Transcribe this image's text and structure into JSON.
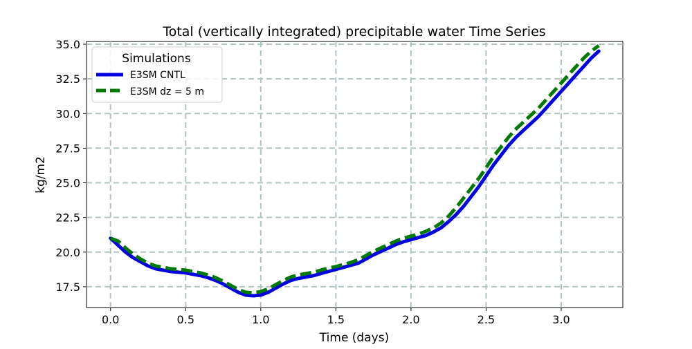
{
  "chart_data": {
    "type": "line",
    "title": "Total (vertically integrated) precipitable water Time Series",
    "xlabel": "Time (days)",
    "ylabel": "kg/m2",
    "xlim": [
      -0.16,
      3.41
    ],
    "ylim": [
      16.0,
      35.2
    ],
    "xticks": [
      0.0,
      0.5,
      1.0,
      1.5,
      2.0,
      2.5,
      3.0
    ],
    "xtick_labels": [
      "0.0",
      "0.5",
      "1.0",
      "1.5",
      "2.0",
      "2.5",
      "3.0"
    ],
    "yticks": [
      17.5,
      20.0,
      22.5,
      25.0,
      27.5,
      30.0,
      32.5,
      35.0
    ],
    "ytick_labels": [
      "17.5",
      "20.0",
      "22.5",
      "25.0",
      "27.5",
      "30.0",
      "32.5",
      "35.0"
    ],
    "grid": true,
    "legend": {
      "title": "Simulations",
      "placement": "top-left"
    },
    "series": [
      {
        "name": "E3SM CNTL",
        "color": "#0000e0",
        "style": "solid",
        "x": [
          0.0,
          0.05,
          0.1,
          0.15,
          0.2,
          0.25,
          0.3,
          0.35,
          0.4,
          0.45,
          0.5,
          0.55,
          0.6,
          0.65,
          0.7,
          0.75,
          0.8,
          0.85,
          0.9,
          0.95,
          1.0,
          1.05,
          1.1,
          1.15,
          1.2,
          1.25,
          1.3,
          1.35,
          1.4,
          1.45,
          1.5,
          1.55,
          1.6,
          1.65,
          1.7,
          1.75,
          1.8,
          1.85,
          1.9,
          1.95,
          2.0,
          2.05,
          2.1,
          2.15,
          2.2,
          2.25,
          2.3,
          2.35,
          2.4,
          2.45,
          2.5,
          2.55,
          2.6,
          2.65,
          2.7,
          2.75,
          2.8,
          2.85,
          2.9,
          2.95,
          3.0,
          3.05,
          3.1,
          3.15,
          3.2,
          3.25
        ],
        "values": [
          21.0,
          20.5,
          20.0,
          19.6,
          19.3,
          19.0,
          18.8,
          18.7,
          18.6,
          18.55,
          18.5,
          18.4,
          18.3,
          18.15,
          17.95,
          17.7,
          17.4,
          17.1,
          16.9,
          16.85,
          16.9,
          17.1,
          17.4,
          17.7,
          17.95,
          18.1,
          18.2,
          18.3,
          18.45,
          18.6,
          18.75,
          18.9,
          19.05,
          19.2,
          19.5,
          19.8,
          20.05,
          20.3,
          20.55,
          20.75,
          20.9,
          21.05,
          21.2,
          21.45,
          21.75,
          22.2,
          22.7,
          23.3,
          24.0,
          24.7,
          25.5,
          26.3,
          27.0,
          27.7,
          28.3,
          28.8,
          29.3,
          29.8,
          30.4,
          31.0,
          31.6,
          32.2,
          32.8,
          33.4,
          34.0,
          34.5
        ]
      },
      {
        "name": "E3SM dz = 5 m",
        "color": "#007a00",
        "style": "dashed",
        "x": [
          0.0,
          0.05,
          0.1,
          0.15,
          0.2,
          0.25,
          0.3,
          0.35,
          0.4,
          0.45,
          0.5,
          0.55,
          0.6,
          0.65,
          0.7,
          0.75,
          0.8,
          0.85,
          0.9,
          0.95,
          1.0,
          1.05,
          1.1,
          1.15,
          1.2,
          1.25,
          1.3,
          1.35,
          1.4,
          1.45,
          1.5,
          1.55,
          1.6,
          1.65,
          1.7,
          1.75,
          1.8,
          1.85,
          1.9,
          1.95,
          2.0,
          2.05,
          2.1,
          2.15,
          2.2,
          2.25,
          2.3,
          2.35,
          2.4,
          2.45,
          2.5,
          2.55,
          2.6,
          2.65,
          2.7,
          2.75,
          2.8,
          2.85,
          2.9,
          2.95,
          3.0,
          3.05,
          3.1,
          3.15,
          3.2,
          3.25
        ],
        "values": [
          21.0,
          20.8,
          20.3,
          19.85,
          19.5,
          19.2,
          19.0,
          18.9,
          18.8,
          18.75,
          18.7,
          18.6,
          18.5,
          18.35,
          18.15,
          17.9,
          17.6,
          17.3,
          17.1,
          17.05,
          17.15,
          17.35,
          17.65,
          17.95,
          18.2,
          18.35,
          18.45,
          18.55,
          18.7,
          18.85,
          18.95,
          19.1,
          19.25,
          19.45,
          19.75,
          20.05,
          20.3,
          20.55,
          20.8,
          21.0,
          21.15,
          21.3,
          21.5,
          21.75,
          22.1,
          22.6,
          23.2,
          23.9,
          24.6,
          25.3,
          26.1,
          26.9,
          27.6,
          28.3,
          28.9,
          29.4,
          29.9,
          30.4,
          31.0,
          31.6,
          32.2,
          32.8,
          33.4,
          34.0,
          34.5,
          34.9
        ]
      }
    ]
  }
}
